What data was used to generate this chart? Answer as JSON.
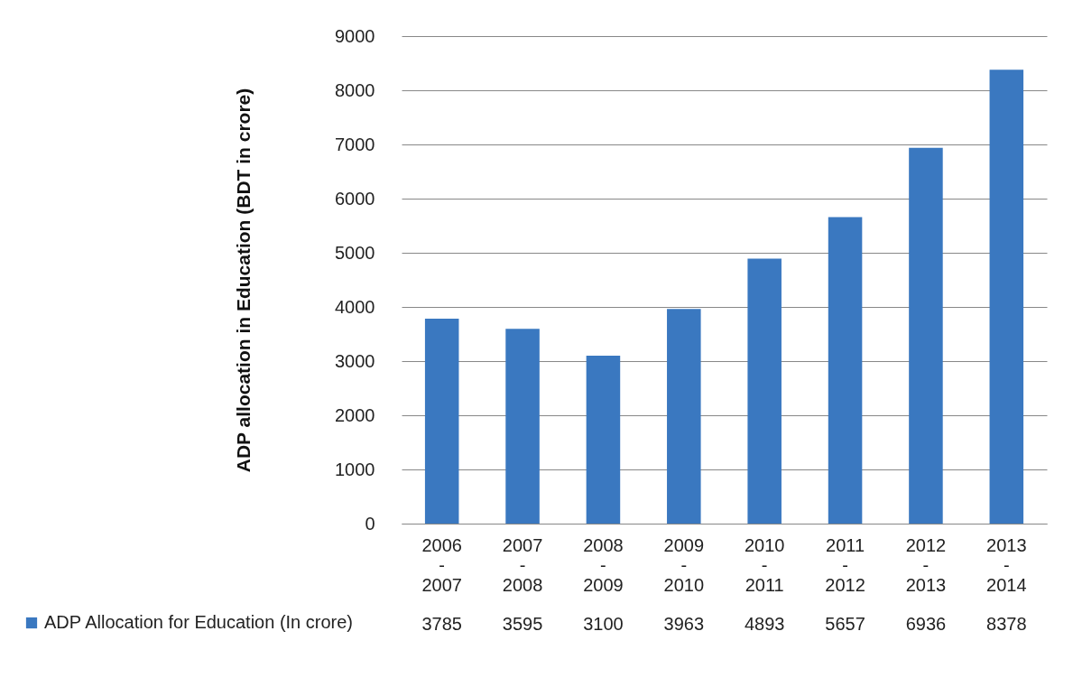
{
  "chart_data": {
    "type": "bar",
    "ylabel": "ADP allocation in Education (BDT in crore)",
    "categories": [
      "2006 - 2007",
      "2007 - 2008",
      "2008 - 2009",
      "2009 - 2010",
      "2010 - 2011",
      "2011 - 2012",
      "2012 - 2013",
      "2013 - 2014"
    ],
    "series": [
      {
        "name": "ADP Allocation for Education (In crore)",
        "color": "#3a78c0",
        "values": [
          3785,
          3595,
          3100,
          3963,
          4893,
          5657,
          6936,
          8378
        ]
      }
    ],
    "ylim": [
      0,
      9000
    ],
    "yticks": [
      0,
      1000,
      2000,
      3000,
      4000,
      5000,
      6000,
      7000,
      8000,
      9000
    ],
    "grid": "y",
    "legend": "bottom left",
    "data_labels": true
  }
}
